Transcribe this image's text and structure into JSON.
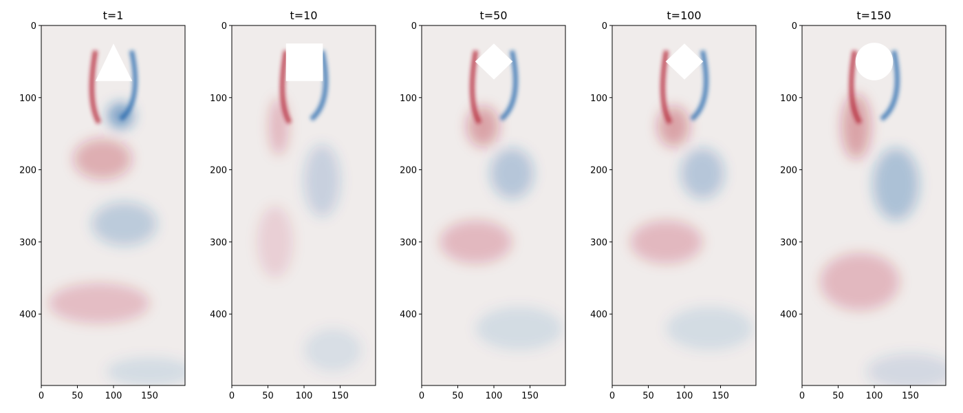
{
  "chart_data": [
    {
      "type": "heatmap",
      "title": "t=1",
      "obstacle": "triangle",
      "xlim": [
        0,
        199
      ],
      "ylim": [
        499,
        0
      ],
      "xticks": [
        0,
        50,
        100,
        150
      ],
      "yticks": [
        0,
        100,
        200,
        300,
        400
      ],
      "colormap": "RdBu_r",
      "colors": {
        "positive": "#b2182b",
        "negative": "#2166ac",
        "neutral": "#f0eceb"
      }
    },
    {
      "type": "heatmap",
      "title": "t=10",
      "obstacle": "square",
      "xlim": [
        0,
        199
      ],
      "ylim": [
        499,
        0
      ],
      "xticks": [
        0,
        50,
        100,
        150
      ],
      "yticks": [
        0,
        100,
        200,
        300,
        400
      ],
      "colormap": "RdBu_r",
      "colors": {
        "positive": "#b2182b",
        "negative": "#2166ac",
        "neutral": "#f0eceb"
      }
    },
    {
      "type": "heatmap",
      "title": "t=50",
      "obstacle": "diamond",
      "xlim": [
        0,
        199
      ],
      "ylim": [
        499,
        0
      ],
      "xticks": [
        0,
        50,
        100,
        150
      ],
      "yticks": [
        0,
        100,
        200,
        300,
        400
      ],
      "colormap": "RdBu_r",
      "colors": {
        "positive": "#b2182b",
        "negative": "#2166ac",
        "neutral": "#f0eceb"
      }
    },
    {
      "type": "heatmap",
      "title": "t=100",
      "obstacle": "diamond",
      "xlim": [
        0,
        199
      ],
      "ylim": [
        499,
        0
      ],
      "xticks": [
        0,
        50,
        100,
        150
      ],
      "yticks": [
        0,
        100,
        200,
        300,
        400
      ],
      "colormap": "RdBu_r",
      "colors": {
        "positive": "#b2182b",
        "negative": "#2166ac",
        "neutral": "#f0eceb"
      }
    },
    {
      "type": "heatmap",
      "title": "t=150",
      "obstacle": "circle",
      "xlim": [
        0,
        199
      ],
      "ylim": [
        499,
        0
      ],
      "xticks": [
        0,
        50,
        100,
        150
      ],
      "yticks": [
        0,
        100,
        200,
        300,
        400
      ],
      "colormap": "RdBu_r",
      "colors": {
        "positive": "#b2182b",
        "negative": "#2166ac",
        "neutral": "#f0eceb"
      }
    }
  ]
}
